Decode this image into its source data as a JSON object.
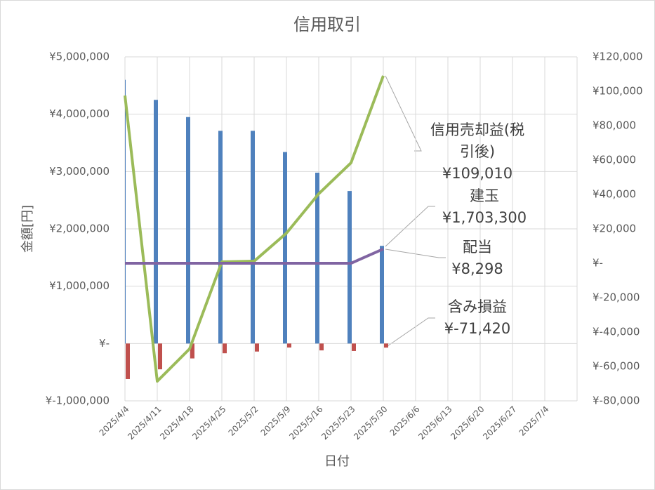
{
  "chart_data": {
    "type": "bar",
    "title": "信用取引",
    "x_label": "日付",
    "y_label": "金額[円]",
    "categories": [
      "2025/4/4",
      "2025/4/11",
      "2025/4/18",
      "2025/4/25",
      "2025/5/2",
      "2025/5/9",
      "2025/5/16",
      "2025/5/23",
      "2025/5/30",
      "2025/6/6",
      "2025/6/13",
      "2025/6/20",
      "2025/6/27",
      "2025/7/4"
    ],
    "ylim": [
      -1000000,
      5000000
    ],
    "yticks": [
      {
        "value": -1000000,
        "label": "¥-1,000,000"
      },
      {
        "value": 0,
        "label": "¥-"
      },
      {
        "value": 1000000,
        "label": "¥1,000,000"
      },
      {
        "value": 2000000,
        "label": "¥2,000,000"
      },
      {
        "value": 3000000,
        "label": "¥3,000,000"
      },
      {
        "value": 4000000,
        "label": "¥4,000,000"
      },
      {
        "value": 5000000,
        "label": "¥5,000,000"
      }
    ],
    "y2lim": [
      -80000,
      120000
    ],
    "y2ticks": [
      {
        "value": -80000,
        "label": "¥-80,000"
      },
      {
        "value": -60000,
        "label": "¥-60,000"
      },
      {
        "value": -40000,
        "label": "¥-40,000"
      },
      {
        "value": -20000,
        "label": "¥-20,000"
      },
      {
        "value": 0,
        "label": "¥-"
      },
      {
        "value": 20000,
        "label": "¥20,000"
      },
      {
        "value": 40000,
        "label": "¥40,000"
      },
      {
        "value": 60000,
        "label": "¥60,000"
      },
      {
        "value": 80000,
        "label": "¥80,000"
      },
      {
        "value": 100000,
        "label": "¥100,000"
      },
      {
        "value": 120000,
        "label": "¥120,000"
      }
    ],
    "grid": true,
    "series": [
      {
        "name": "建玉",
        "type": "bar",
        "color": "#4f81bd",
        "values": [
          4600000,
          4250000,
          3950000,
          3710000,
          3710000,
          3340000,
          2980000,
          2660000,
          1703300,
          null,
          null,
          null,
          null,
          null
        ],
        "value_labels": [
          null,
          null,
          null,
          null,
          null,
          null,
          null,
          null,
          "¥1,703,300",
          null,
          null,
          null,
          null,
          null
        ]
      },
      {
        "name": "含み損益",
        "type": "bar",
        "color": "#c0504d",
        "values": [
          -620000,
          -450000,
          -260000,
          -170000,
          -140000,
          -70000,
          -120000,
          -130000,
          -71420,
          null,
          null,
          null,
          null,
          null
        ],
        "value_labels": [
          null,
          null,
          null,
          null,
          null,
          null,
          null,
          null,
          "¥-71,420",
          null,
          null,
          null,
          null,
          null
        ]
      },
      {
        "name": "信用売却益(税引後)",
        "type": "line",
        "axis": "y2",
        "color": "#9bbb59",
        "values": [
          97500,
          -68600,
          -49800,
          800,
          1200,
          17500,
          40400,
          58400,
          109010,
          null,
          null,
          null,
          null,
          null
        ],
        "value_labels": [
          null,
          null,
          null,
          null,
          null,
          null,
          null,
          null,
          "¥109,010",
          null,
          null,
          null,
          null,
          null
        ]
      },
      {
        "name": "配当",
        "type": "line",
        "axis": "y2",
        "color": "#8064a2",
        "values": [
          0,
          0,
          0,
          0,
          0,
          0,
          0,
          0,
          8298,
          null,
          null,
          null,
          null,
          null
        ],
        "value_labels": [
          null,
          null,
          null,
          null,
          null,
          null,
          null,
          null,
          "¥8,298",
          null,
          null,
          null,
          null,
          null
        ]
      }
    ]
  }
}
